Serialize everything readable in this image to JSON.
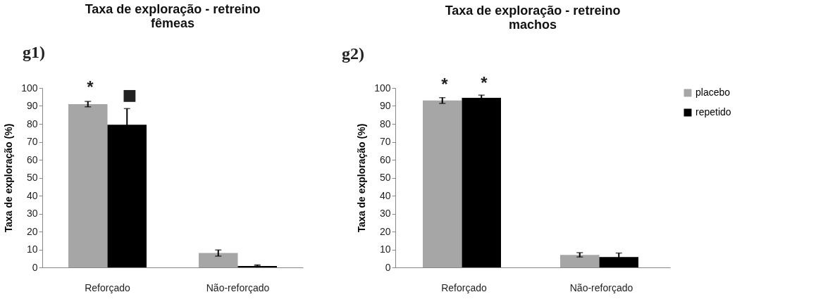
{
  "chart_data": [
    {
      "type": "bar",
      "title": [
        "Taxa de exploração - retreino",
        "fêmeas"
      ],
      "ylabel": "Taxa de exploração (%)",
      "categories": [
        "Reforçado",
        "Não-reforçado"
      ],
      "series": [
        {
          "color": "#a6a6a6",
          "values": [
            91,
            8
          ],
          "errors": [
            1.5,
            1.7
          ]
        },
        {
          "color": "#000000",
          "values": [
            79.5,
            0.8
          ],
          "errors": [
            9,
            [
              0.8,
              1.4
            ]
          ]
        }
      ],
      "ylim": [
        0,
        100
      ],
      "yticks": [
        0,
        10,
        20,
        30,
        40,
        50,
        60,
        70,
        80,
        90,
        100
      ],
      "grid": false,
      "annotations": [
        "g1)",
        "*",
        "■"
      ]
    },
    {
      "type": "bar",
      "title": [
        "Taxa de exploração - retreino",
        "machos"
      ],
      "ylabel": "Taxa de exploração (%)",
      "categories": [
        "Reforçado",
        "Não-reforçado"
      ],
      "series": [
        {
          "name": "placebo",
          "color": "#a6a6a6",
          "values": [
            93,
            7
          ],
          "errors": [
            1.6,
            1.2
          ]
        },
        {
          "name": "repetido",
          "color": "#000000",
          "values": [
            94.5,
            5.8
          ],
          "errors": [
            1.5,
            2.2
          ]
        }
      ],
      "ylim": [
        0,
        100
      ],
      "yticks": [
        0,
        10,
        20,
        30,
        40,
        50,
        60,
        70,
        80,
        90,
        100
      ],
      "grid": false,
      "legend": "right",
      "annotations": [
        "g2)",
        "*",
        "*"
      ]
    }
  ]
}
